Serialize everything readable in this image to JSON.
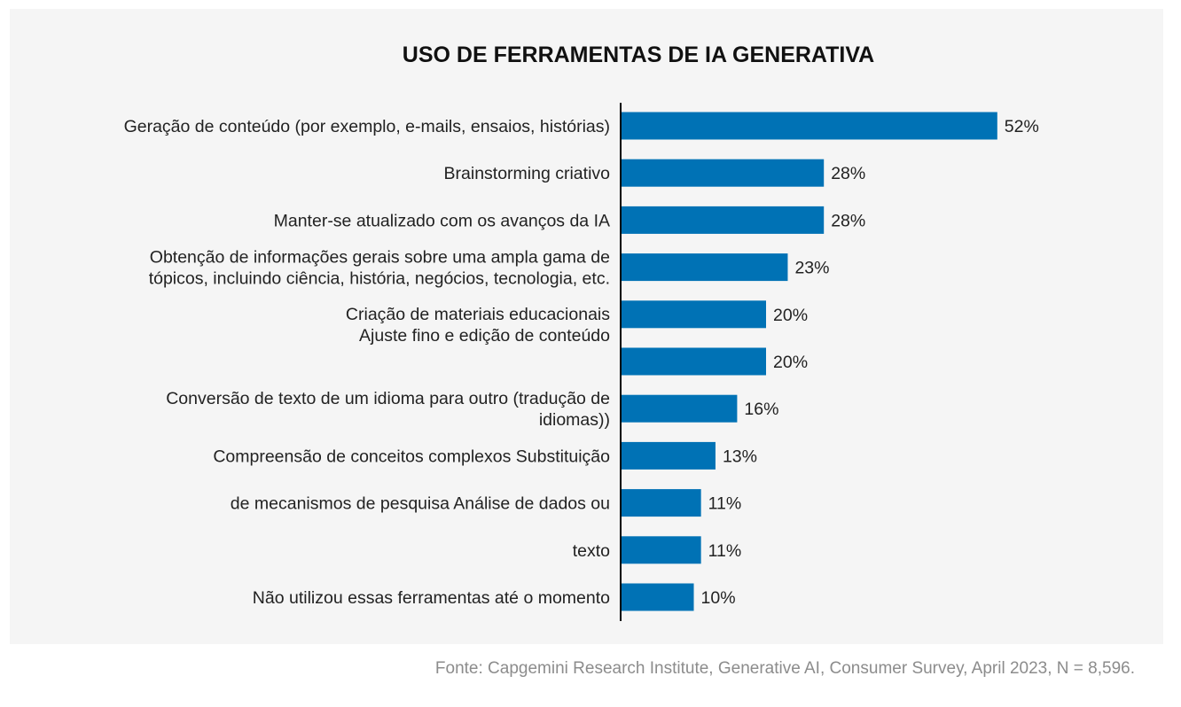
{
  "chart_data": {
    "type": "bar",
    "orientation": "horizontal",
    "title": "USO DE FERRAMENTAS DE IA GENERATIVA",
    "categories": [
      "Geração de conteúdo (por exemplo, e-mails, ensaios, histórias)",
      "Brainstorming criativo",
      "Manter-se atualizado com os avanços da IA",
      "Obtenção de informações gerais sobre uma ampla gama de\ntópicos, incluindo ciência, história, negócios, tecnologia, etc.",
      "Criação de materiais educacionais\nAjuste fino e edição de conteúdo",
      "",
      "Conversão de texto de um idioma para outro (tradução de\nidiomas))",
      "Compreensão de conceitos complexos Substituição",
      "de mecanismos de pesquisa Análise de dados ou",
      "texto",
      "Não utilizou essas ferramentas até o momento"
    ],
    "values": [
      52,
      28,
      28,
      23,
      20,
      20,
      16,
      13,
      11,
      11,
      10
    ],
    "value_labels": [
      "52%",
      "28%",
      "28%",
      "23%",
      "20%",
      "20%",
      "16%",
      "13%",
      "11%",
      "11%",
      "10%"
    ],
    "unit": "%",
    "xlim": [
      0,
      60
    ],
    "grid": false,
    "legend": "none",
    "bar_color": "#0072b5"
  },
  "source": "Fonte: Capgemini Research Institute, Generative AI, Consumer Survey, April 2023, N = 8,596."
}
